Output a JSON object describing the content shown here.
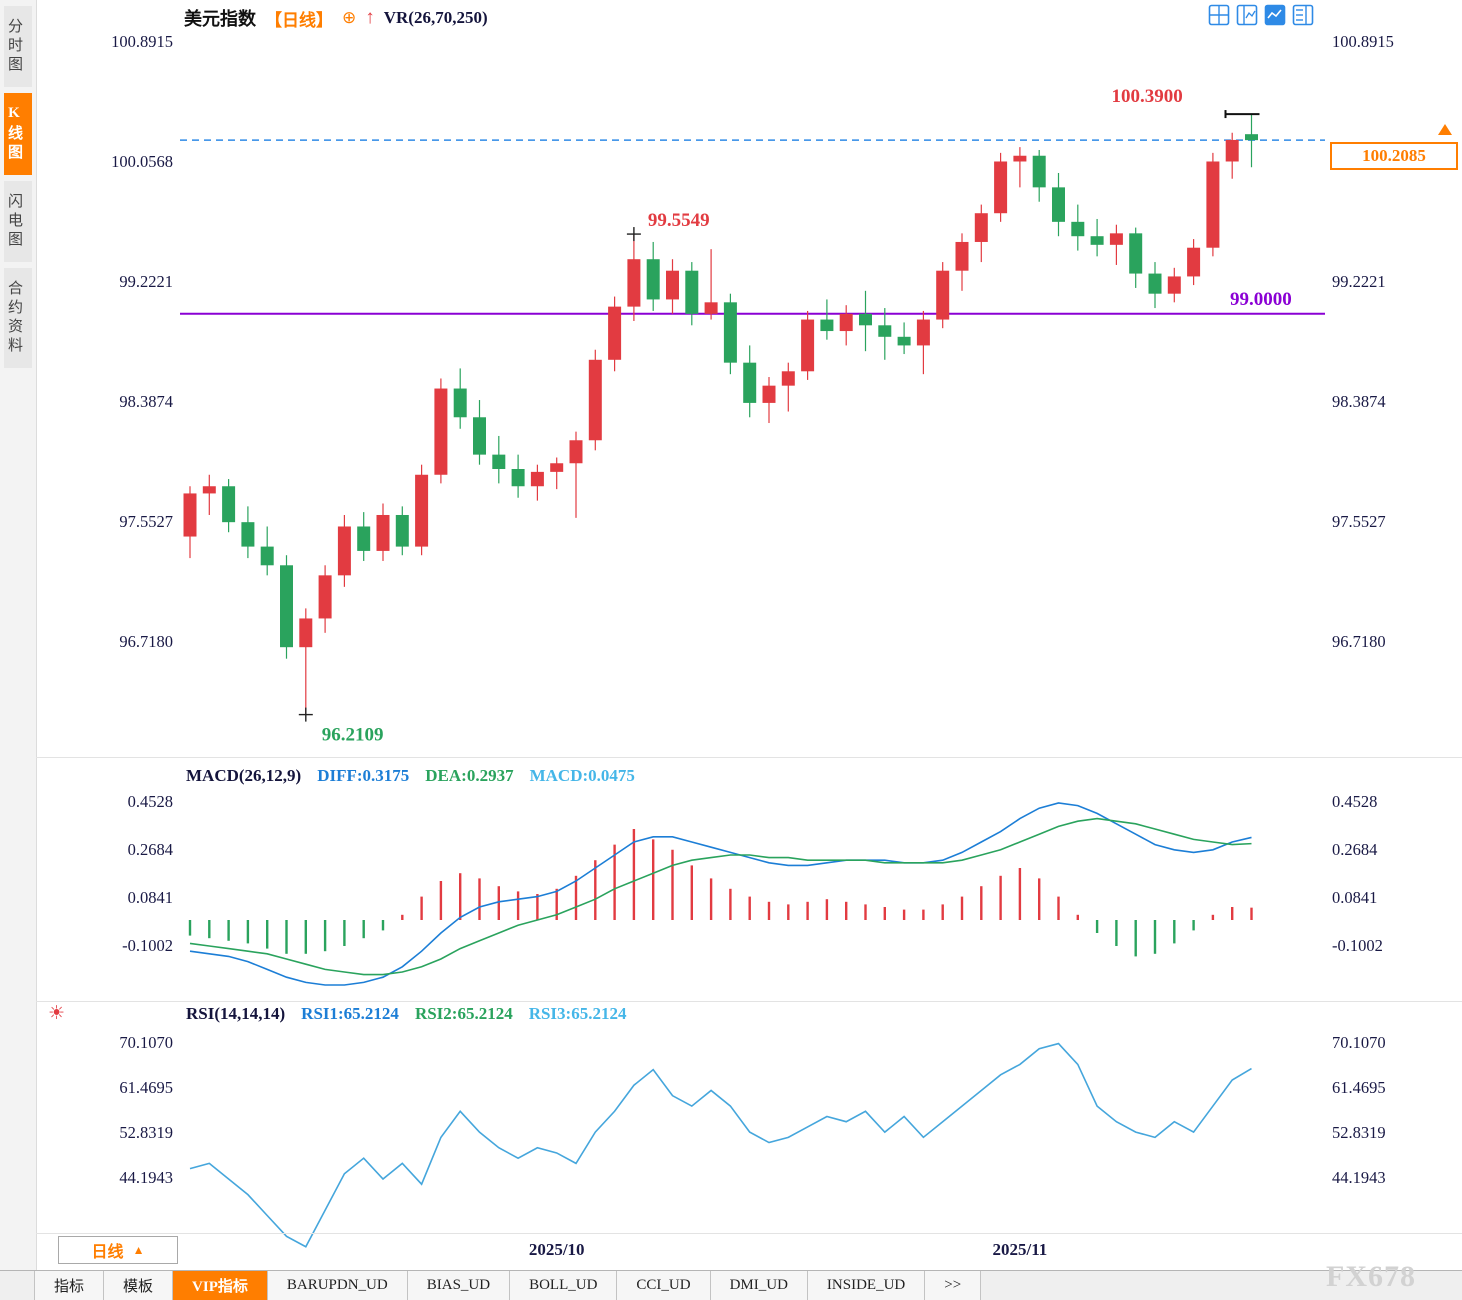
{
  "sidebar": {
    "items": [
      {
        "label": "分时图",
        "active": false
      },
      {
        "label": "K线图",
        "active": true
      },
      {
        "label": "闪电图",
        "active": false
      },
      {
        "label": "合约资料",
        "active": false
      }
    ]
  },
  "header": {
    "symbol": "美元指数",
    "period": "【日线】",
    "indicator": "VR(26,70,250)"
  },
  "icons": {
    "add_indicator": "⊕",
    "up_arrow": "↑",
    "period_up": "▲",
    "settings_sun": "☀"
  },
  "layout_icons": [
    {
      "name": "grid-layout-icon"
    },
    {
      "name": "split-layout-icon"
    },
    {
      "name": "chart-panel-icon"
    },
    {
      "name": "column-layout-icon"
    }
  ],
  "price_tag": {
    "value": "100.2085"
  },
  "bottom": {
    "period_label": "日线",
    "date_labels": [
      {
        "label": "2025/10",
        "index": 19
      },
      {
        "label": "2025/11",
        "index": 43
      }
    ]
  },
  "tabs": {
    "items": [
      "指标",
      "模板",
      "VIP指标",
      "BARUPDN_UD",
      "BIAS_UD",
      "BOLL_UD",
      "CCI_UD",
      "DMI_UD",
      "INSIDE_UD",
      ">>"
    ],
    "active": "VIP指标"
  },
  "watermark": "FX678",
  "colors": {
    "up": "#e23b41",
    "down": "#2aa35d",
    "accent": "#ff7e00",
    "support": "#8a00d4",
    "dashed": "#2e8ae6",
    "diff": "#1c7ed6",
    "dea": "#2aa35d",
    "macd_text": "#45b6e8",
    "rsi_line": "#45a6dc",
    "axis_text": "#191945"
  },
  "chart_data": [
    {
      "type": "candlestick",
      "title": "美元指数 日线",
      "y_ticks": [
        "100.8915",
        "100.0568",
        "99.2221",
        "98.3874",
        "97.5527",
        "96.7180"
      ],
      "x_labels": [
        "2025/10",
        "2025/11"
      ],
      "ylim": [
        95.95,
        100.95
      ],
      "grid": false,
      "candles": [
        [
          97.45,
          97.8,
          97.3,
          97.75
        ],
        [
          97.75,
          97.88,
          97.6,
          97.8
        ],
        [
          97.8,
          97.85,
          97.48,
          97.55
        ],
        [
          97.55,
          97.66,
          97.3,
          97.38
        ],
        [
          97.38,
          97.52,
          97.18,
          97.25
        ],
        [
          97.25,
          97.32,
          96.6,
          96.68
        ],
        [
          96.68,
          96.95,
          96.2109,
          96.88
        ],
        [
          96.88,
          97.25,
          96.78,
          97.18
        ],
        [
          97.18,
          97.6,
          97.1,
          97.52
        ],
        [
          97.52,
          97.62,
          97.28,
          97.35
        ],
        [
          97.35,
          97.68,
          97.28,
          97.6
        ],
        [
          97.6,
          97.66,
          97.32,
          97.38
        ],
        [
          97.38,
          97.95,
          97.32,
          97.88
        ],
        [
          97.88,
          98.55,
          97.82,
          98.48
        ],
        [
          98.48,
          98.62,
          98.2,
          98.28
        ],
        [
          98.28,
          98.4,
          97.95,
          98.02
        ],
        [
          98.02,
          98.15,
          97.82,
          97.92
        ],
        [
          97.92,
          98.02,
          97.72,
          97.8
        ],
        [
          97.8,
          97.95,
          97.7,
          97.9
        ],
        [
          97.9,
          98.0,
          97.78,
          97.96
        ],
        [
          97.96,
          98.18,
          97.58,
          98.12
        ],
        [
          98.12,
          98.75,
          98.05,
          98.68
        ],
        [
          98.68,
          99.12,
          98.6,
          99.05
        ],
        [
          99.05,
          99.5549,
          98.95,
          99.38
        ],
        [
          99.38,
          99.5,
          99.02,
          99.1
        ],
        [
          99.1,
          99.38,
          99.0,
          99.3
        ],
        [
          99.3,
          99.36,
          98.92,
          99.0
        ],
        [
          99.0,
          99.45,
          98.96,
          99.08
        ],
        [
          99.08,
          99.14,
          98.58,
          98.66
        ],
        [
          98.66,
          98.78,
          98.28,
          98.38
        ],
        [
          98.38,
          98.56,
          98.24,
          98.5
        ],
        [
          98.5,
          98.66,
          98.32,
          98.6
        ],
        [
          98.6,
          99.02,
          98.54,
          98.96
        ],
        [
          98.96,
          99.1,
          98.82,
          98.88
        ],
        [
          98.88,
          99.06,
          98.78,
          99.0
        ],
        [
          99.0,
          99.16,
          98.74,
          98.92
        ],
        [
          98.92,
          99.04,
          98.68,
          98.84
        ],
        [
          98.84,
          98.94,
          98.72,
          98.78
        ],
        [
          98.78,
          99.02,
          98.58,
          98.96
        ],
        [
          98.96,
          99.36,
          98.9,
          99.3
        ],
        [
          99.3,
          99.56,
          99.16,
          99.5
        ],
        [
          99.5,
          99.76,
          99.36,
          99.7
        ],
        [
          99.7,
          100.12,
          99.64,
          100.06
        ],
        [
          100.06,
          100.16,
          99.88,
          100.1
        ],
        [
          100.1,
          100.14,
          99.78,
          99.88
        ],
        [
          99.88,
          99.98,
          99.54,
          99.64
        ],
        [
          99.64,
          99.76,
          99.44,
          99.54
        ],
        [
          99.54,
          99.66,
          99.4,
          99.48
        ],
        [
          99.48,
          99.62,
          99.34,
          99.56
        ],
        [
          99.56,
          99.6,
          99.18,
          99.28
        ],
        [
          99.28,
          99.36,
          99.04,
          99.14
        ],
        [
          99.14,
          99.32,
          99.08,
          99.26
        ],
        [
          99.26,
          99.52,
          99.2,
          99.46
        ],
        [
          99.46,
          100.12,
          99.4,
          100.06
        ],
        [
          100.06,
          100.26,
          99.94,
          100.21
        ],
        [
          100.25,
          100.39,
          100.02,
          100.2085
        ]
      ],
      "annotations": {
        "peak": {
          "label": "100.3900",
          "index": 55
        },
        "swing_high": {
          "label": "99.5549",
          "index": 23
        },
        "low": {
          "label": "96.2109",
          "index": 6
        },
        "support": {
          "label": "99.0000",
          "value": 99.0
        },
        "last_price": {
          "label": "100.2085",
          "value": 100.2085
        }
      }
    },
    {
      "type": "bar",
      "title": "MACD(26,12,9)",
      "labels": {
        "name": "MACD(26,12,9)",
        "diff": "DIFF:0.3175",
        "dea": "DEA:0.2937",
        "macd": "MACD:0.0475"
      },
      "y_ticks": [
        "0.4528",
        "0.2684",
        "0.0841",
        "-0.1002"
      ],
      "histogram": [
        -0.06,
        -0.07,
        -0.08,
        -0.09,
        -0.11,
        -0.13,
        -0.13,
        -0.12,
        -0.1,
        -0.07,
        -0.04,
        0.02,
        0.09,
        0.15,
        0.18,
        0.16,
        0.13,
        0.11,
        0.1,
        0.12,
        0.17,
        0.23,
        0.29,
        0.35,
        0.31,
        0.27,
        0.21,
        0.16,
        0.12,
        0.09,
        0.07,
        0.06,
        0.07,
        0.08,
        0.07,
        0.06,
        0.05,
        0.04,
        0.04,
        0.06,
        0.09,
        0.13,
        0.17,
        0.2,
        0.16,
        0.09,
        0.02,
        -0.05,
        -0.1,
        -0.14,
        -0.13,
        -0.09,
        -0.04,
        0.02,
        0.05,
        0.0475
      ],
      "series": [
        {
          "name": "DIFF",
          "values": [
            -0.12,
            -0.13,
            -0.14,
            -0.16,
            -0.19,
            -0.22,
            -0.24,
            -0.25,
            -0.25,
            -0.24,
            -0.22,
            -0.18,
            -0.12,
            -0.05,
            0.01,
            0.05,
            0.07,
            0.08,
            0.09,
            0.11,
            0.15,
            0.2,
            0.25,
            0.3,
            0.32,
            0.32,
            0.3,
            0.28,
            0.26,
            0.24,
            0.22,
            0.21,
            0.21,
            0.22,
            0.23,
            0.23,
            0.23,
            0.22,
            0.22,
            0.23,
            0.26,
            0.3,
            0.34,
            0.39,
            0.43,
            0.45,
            0.44,
            0.41,
            0.37,
            0.33,
            0.29,
            0.27,
            0.26,
            0.27,
            0.3,
            0.3175
          ]
        },
        {
          "name": "DEA",
          "values": [
            -0.09,
            -0.1,
            -0.11,
            -0.12,
            -0.13,
            -0.15,
            -0.17,
            -0.19,
            -0.2,
            -0.21,
            -0.21,
            -0.2,
            -0.18,
            -0.15,
            -0.11,
            -0.08,
            -0.05,
            -0.02,
            0.0,
            0.02,
            0.05,
            0.08,
            0.12,
            0.15,
            0.18,
            0.21,
            0.23,
            0.24,
            0.25,
            0.25,
            0.24,
            0.24,
            0.23,
            0.23,
            0.23,
            0.23,
            0.22,
            0.22,
            0.22,
            0.22,
            0.23,
            0.25,
            0.27,
            0.3,
            0.33,
            0.36,
            0.38,
            0.39,
            0.38,
            0.37,
            0.35,
            0.33,
            0.31,
            0.3,
            0.29,
            0.2937
          ]
        }
      ]
    },
    {
      "type": "line",
      "title": "RSI(14,14,14)",
      "labels": {
        "name": "RSI(14,14,14)",
        "rsi1": "RSI1:65.2124",
        "rsi2": "RSI2:65.2124",
        "rsi3": "RSI3:65.2124"
      },
      "y_ticks": [
        "70.1070",
        "61.4695",
        "52.8319",
        "44.1943"
      ],
      "values": [
        46,
        47,
        44,
        41,
        37,
        33,
        31,
        38,
        45,
        48,
        44,
        47,
        43,
        52,
        57,
        53,
        50,
        48,
        50,
        49,
        47,
        53,
        57,
        62,
        65,
        60,
        58,
        61,
        58,
        53,
        51,
        52,
        54,
        56,
        55,
        57,
        53,
        56,
        52,
        55,
        58,
        61,
        64,
        66,
        69,
        70,
        66,
        58,
        55,
        53,
        52,
        55,
        53,
        58,
        63,
        65.2124
      ]
    }
  ]
}
